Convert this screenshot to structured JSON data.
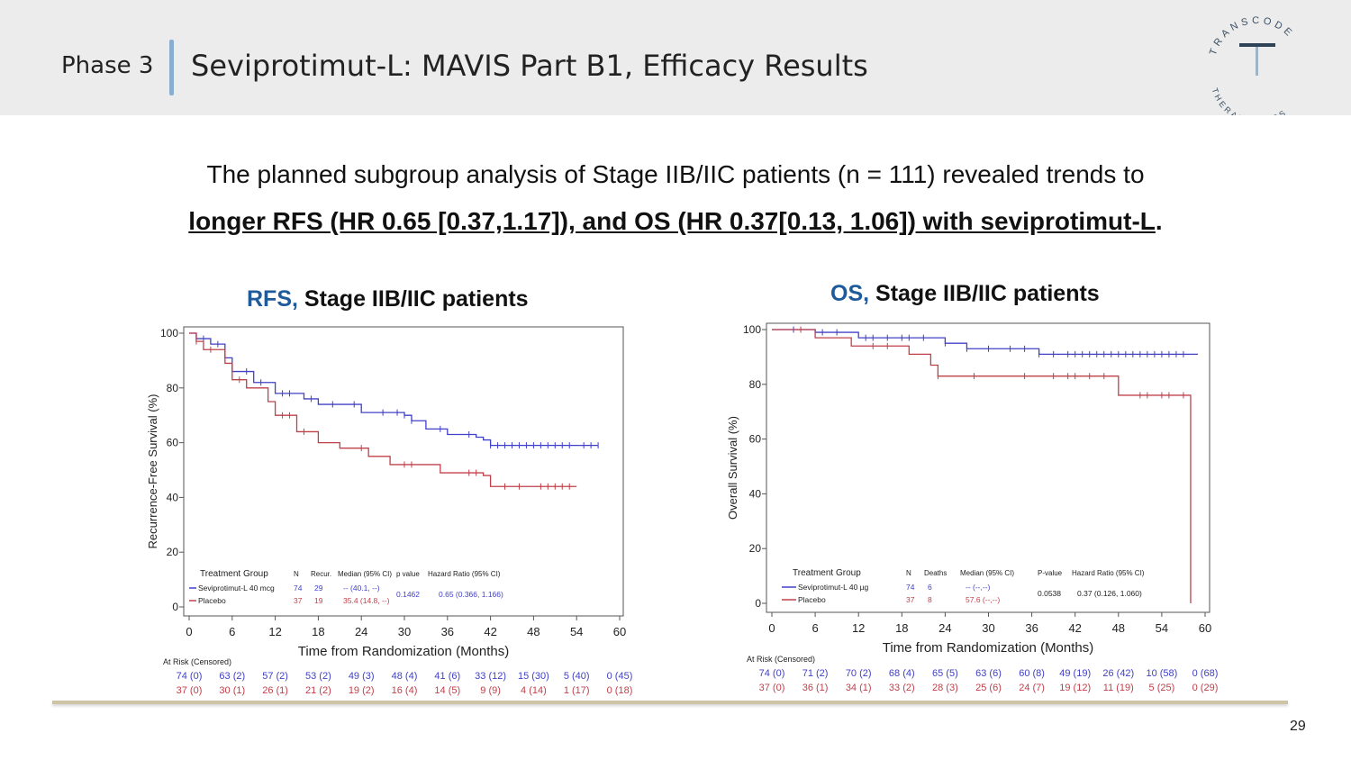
{
  "header": {
    "phase": "Phase 3",
    "title": "Seviprotimut-L: MAVIS Part B1, Efficacy Results",
    "logo": {
      "top_text": "TRANSCODE",
      "bottom_text": "THERAPEUTICS",
      "letter": "T"
    }
  },
  "summary": {
    "line1": "The planned subgroup analysis of Stage IIB/IIC patients (n = 111) revealed trends to",
    "line2": "longer RFS (HR 0.65 [0.37,1.17]), and OS (HR 0.37[0.13, 1.06]) with seviprotimut-L",
    "line2_end": "."
  },
  "colors": {
    "blue": "#4040c8",
    "red": "#c0404a",
    "accent": "#1f5b9a"
  },
  "chart_data": [
    {
      "type": "line",
      "title_keyword": "RFS,",
      "title_rest": "Stage IIB/IIC patients",
      "xlabel": "Time from Randomization (Months)",
      "ylabel": "Recurrence-Free Survival (%)",
      "xlim": [
        0,
        60
      ],
      "ylim": [
        0,
        100
      ],
      "xticks": [
        0,
        6,
        12,
        18,
        24,
        30,
        36,
        42,
        48,
        54,
        60
      ],
      "yticks": [
        0,
        20,
        40,
        60,
        80,
        100
      ],
      "series": [
        {
          "name": "Seviprotimut-L 40 mcg",
          "color": "#4040c8",
          "steps": [
            [
              0,
              100
            ],
            [
              1,
              98
            ],
            [
              3,
              96
            ],
            [
              5,
              91
            ],
            [
              6,
              86
            ],
            [
              9,
              82
            ],
            [
              12,
              78
            ],
            [
              16,
              76
            ],
            [
              18,
              74
            ],
            [
              24,
              71
            ],
            [
              30,
              70
            ],
            [
              31,
              68
            ],
            [
              33,
              65
            ],
            [
              36,
              63
            ],
            [
              40,
              62
            ],
            [
              41,
              61
            ],
            [
              42,
              59
            ],
            [
              57,
              59
            ]
          ],
          "censors": [
            1,
            2,
            4,
            8,
            10,
            13,
            14,
            17,
            20,
            23,
            27,
            29,
            30,
            31,
            35,
            39,
            42,
            43,
            44,
            45,
            46,
            47,
            48,
            49,
            50,
            51,
            52,
            53,
            55,
            56,
            57
          ]
        },
        {
          "name": "Placebo",
          "color": "#c0404a",
          "steps": [
            [
              0,
              100
            ],
            [
              1,
              97
            ],
            [
              2,
              94
            ],
            [
              5,
              89
            ],
            [
              6,
              83
            ],
            [
              8,
              80
            ],
            [
              11,
              75
            ],
            [
              12,
              70
            ],
            [
              15,
              64
            ],
            [
              18,
              60
            ],
            [
              21,
              58
            ],
            [
              25,
              55
            ],
            [
              28,
              52
            ],
            [
              35,
              49
            ],
            [
              41,
              48
            ],
            [
              42,
              44
            ],
            [
              54,
              44
            ]
          ],
          "censors": [
            1,
            3,
            7,
            13,
            14,
            16,
            24,
            30,
            31,
            39,
            40,
            44,
            46,
            49,
            50,
            51,
            52,
            53
          ]
        }
      ],
      "legend": {
        "headers": [
          "Treatment Group",
          "N",
          "Recur.",
          "Median (95% CI)",
          "p value",
          "Hazard Ratio (95% CI)"
        ],
        "rows": [
          {
            "group": "Seviprotimut-L 40 mcg",
            "n": "74",
            "events": "29",
            "median": "-- (40.1, --)"
          },
          {
            "group": "Placebo",
            "n": "37",
            "events": "19",
            "median": "35.4 (14.8, --)"
          }
        ],
        "p_value": "0.1462",
        "hazard_ratio": "0.65 (0.366, 1.166)"
      },
      "at_risk": {
        "label": "At Risk (Censored)",
        "treatment": [
          "74 (0)",
          "63 (2)",
          "57 (2)",
          "53 (2)",
          "49 (3)",
          "48 (4)",
          "41 (6)",
          "33 (12)",
          "15 (30)",
          "5 (40)",
          "0 (45)"
        ],
        "placebo": [
          "37 (0)",
          "30 (1)",
          "26 (1)",
          "21 (2)",
          "19 (2)",
          "16 (4)",
          "14 (5)",
          "9 (9)",
          "4 (14)",
          "1 (17)",
          "0 (18)"
        ]
      }
    },
    {
      "type": "line",
      "title_keyword": "OS,",
      "title_rest": "Stage IIB/IIC patients",
      "xlabel": "Time from Randomization (Months)",
      "ylabel": "Overall Survival (%)",
      "xlim": [
        0,
        60
      ],
      "ylim": [
        0,
        100
      ],
      "xticks": [
        0,
        6,
        12,
        18,
        24,
        30,
        36,
        42,
        48,
        54,
        60
      ],
      "yticks": [
        0,
        20,
        40,
        60,
        80,
        100
      ],
      "series": [
        {
          "name": "Seviprotimut-L 40 µg",
          "color": "#4040c8",
          "steps": [
            [
              0,
              100
            ],
            [
              6,
              99
            ],
            [
              12,
              97
            ],
            [
              24,
              95
            ],
            [
              27,
              93
            ],
            [
              37,
              91
            ],
            [
              59,
              91
            ]
          ],
          "censors": [
            3,
            7,
            9,
            13,
            14,
            16,
            18,
            19,
            21,
            24,
            27,
            30,
            33,
            35,
            37,
            39,
            41,
            42,
            43,
            44,
            45,
            46,
            47,
            48,
            49,
            50,
            51,
            52,
            53,
            54,
            55,
            56,
            57
          ]
        },
        {
          "name": "Placebo",
          "color": "#c0404a",
          "steps": [
            [
              0,
              100
            ],
            [
              6,
              97
            ],
            [
              11,
              94
            ],
            [
              19,
              91
            ],
            [
              22,
              87
            ],
            [
              23,
              83
            ],
            [
              48,
              76
            ],
            [
              58,
              0
            ]
          ],
          "censors": [
            4,
            14,
            16,
            23,
            28,
            35,
            39,
            41,
            42,
            44,
            46,
            51,
            52,
            54,
            55,
            57
          ]
        }
      ],
      "legend": {
        "headers": [
          "Treatment Group",
          "N",
          "Deaths",
          "Median (95% CI)",
          "P-value",
          "Hazard Ratio (95% CI)"
        ],
        "rows": [
          {
            "group": "Seviprotimut-L 40 µg",
            "n": "74",
            "events": "6",
            "median": "-- (--,--)"
          },
          {
            "group": "Placebo",
            "n": "37",
            "events": "8",
            "median": "57.6 (--,--)"
          }
        ],
        "p_value": "0.0538",
        "hazard_ratio": "0.37 (0.126, 1.060)"
      },
      "at_risk": {
        "label": "At Risk (Censored)",
        "treatment": [
          "74 (0)",
          "71 (2)",
          "70 (2)",
          "68 (4)",
          "65 (5)",
          "63 (6)",
          "60 (8)",
          "49 (19)",
          "26 (42)",
          "10 (58)",
          "0 (68)"
        ],
        "placebo": [
          "37 (0)",
          "36 (1)",
          "34 (1)",
          "33 (2)",
          "28 (3)",
          "25 (6)",
          "24 (7)",
          "19 (12)",
          "11 (19)",
          "5 (25)",
          "0 (29)"
        ]
      }
    }
  ],
  "page_number": "29"
}
